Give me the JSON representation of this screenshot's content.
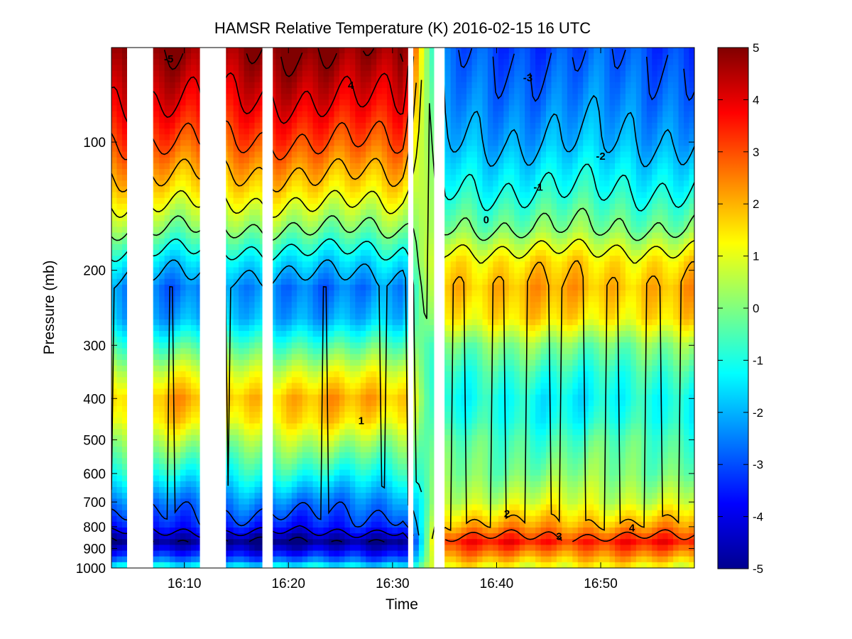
{
  "chart_data": {
    "type": "heatmap",
    "title": "HAMSR  Relative Temperature (K) 2016-02-15 16 UTC",
    "xlabel": "Time",
    "ylabel": "Pressure (mb)",
    "x_ticks": [
      "16:10",
      "16:20",
      "16:30",
      "16:40",
      "16:50"
    ],
    "y_ticks": [
      "100",
      "200",
      "300",
      "400",
      "500",
      "600",
      "700",
      "800",
      "900",
      "1000"
    ],
    "y_scale": "log",
    "y_reversed": true,
    "xlim": [
      "16:03",
      "16:59"
    ],
    "ylim_mb": [
      1000,
      60
    ],
    "colorbar": {
      "colormap": "jet",
      "range": [
        -5,
        5
      ],
      "ticks": [
        "5",
        "4",
        "3",
        "2",
        "1",
        "0",
        "-1",
        "-2",
        "-3",
        "-4",
        "-5"
      ]
    },
    "data_gaps": [
      {
        "start": "16:04.5",
        "end": "16:07.0"
      },
      {
        "start": "16:11.5",
        "end": "16:14.0"
      },
      {
        "start": "16:17.5",
        "end": "16:18.5"
      },
      {
        "start": "16:31.5",
        "end": "16:32.0"
      },
      {
        "start": "16:34.0",
        "end": "16:35.0"
      }
    ],
    "profile_mean": {
      "pressure_mb": [
        60,
        80,
        100,
        130,
        160,
        190,
        220,
        260,
        300,
        350,
        400,
        450,
        500,
        600,
        700,
        800,
        870,
        950,
        1000
      ],
      "relative_temperature_K": [
        -3,
        -2.5,
        -2,
        -1,
        0,
        1.5,
        2,
        1.5,
        0,
        -0.8,
        -1.2,
        -1,
        -0.5,
        0,
        0.8,
        2.2,
        3.5,
        2,
        1
      ]
    },
    "segments": [
      {
        "name": "",
        "start": "16:03",
        "end": "16:31",
        "pressure_mb": [
          60,
          80,
          100,
          130,
          160,
          190,
          220,
          260,
          300,
          350,
          400,
          450,
          500,
          600,
          700,
          800,
          870,
          950,
          1000
        ],
        "relative_temperature_K": [
          5,
          4,
          3,
          1.5,
          0,
          -1.5,
          -2.5,
          -2,
          -0.5,
          1,
          2,
          1.5,
          0.5,
          -1,
          -2.5,
          -3.5,
          -5,
          -3,
          -1
        ]
      }
    ],
    "contour_levels": [
      -5,
      -4,
      -3,
      -2,
      -1,
      0,
      1,
      2,
      3,
      4,
      5
    ],
    "annotations": [
      "-5",
      "4",
      "-3",
      "-2",
      "-1",
      "0",
      "1",
      "2",
      "3",
      "4"
    ]
  }
}
